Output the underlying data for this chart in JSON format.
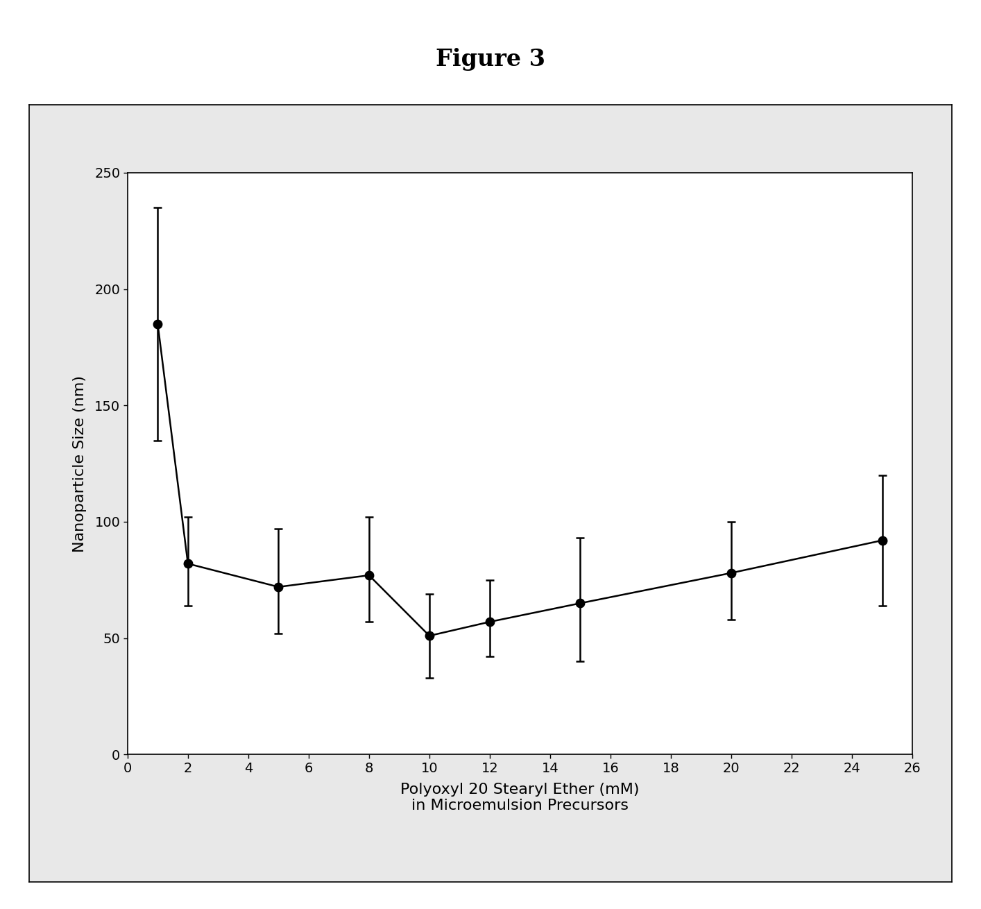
{
  "title": "Figure 3",
  "xlabel_line1": "Polyoxyl 20 Stearyl Ether (mM)",
  "xlabel_line2": "in Microemulsion Precursors",
  "ylabel": "Nanoparticle Size (nm)",
  "x": [
    1,
    2,
    5,
    8,
    10,
    12,
    15,
    20,
    25
  ],
  "y": [
    185,
    82,
    72,
    77,
    51,
    57,
    65,
    78,
    92
  ],
  "yerr_upper": [
    50,
    20,
    25,
    25,
    18,
    18,
    28,
    22,
    28
  ],
  "yerr_lower": [
    50,
    18,
    20,
    20,
    18,
    15,
    25,
    20,
    28
  ],
  "xlim": [
    0,
    26
  ],
  "ylim": [
    0,
    250
  ],
  "xticks": [
    0,
    2,
    4,
    6,
    8,
    10,
    12,
    14,
    16,
    18,
    20,
    22,
    24,
    26
  ],
  "yticks": [
    0,
    50,
    100,
    150,
    200,
    250
  ],
  "line_color": "#000000",
  "marker_color": "#000000",
  "marker_size": 9,
  "line_width": 1.8,
  "capsize": 4,
  "title_fontsize": 24,
  "label_fontsize": 16,
  "tick_fontsize": 14,
  "background_color": "#ffffff",
  "outer_box_facecolor": "#e8e8e8",
  "outer_box_edgecolor": "#000000"
}
